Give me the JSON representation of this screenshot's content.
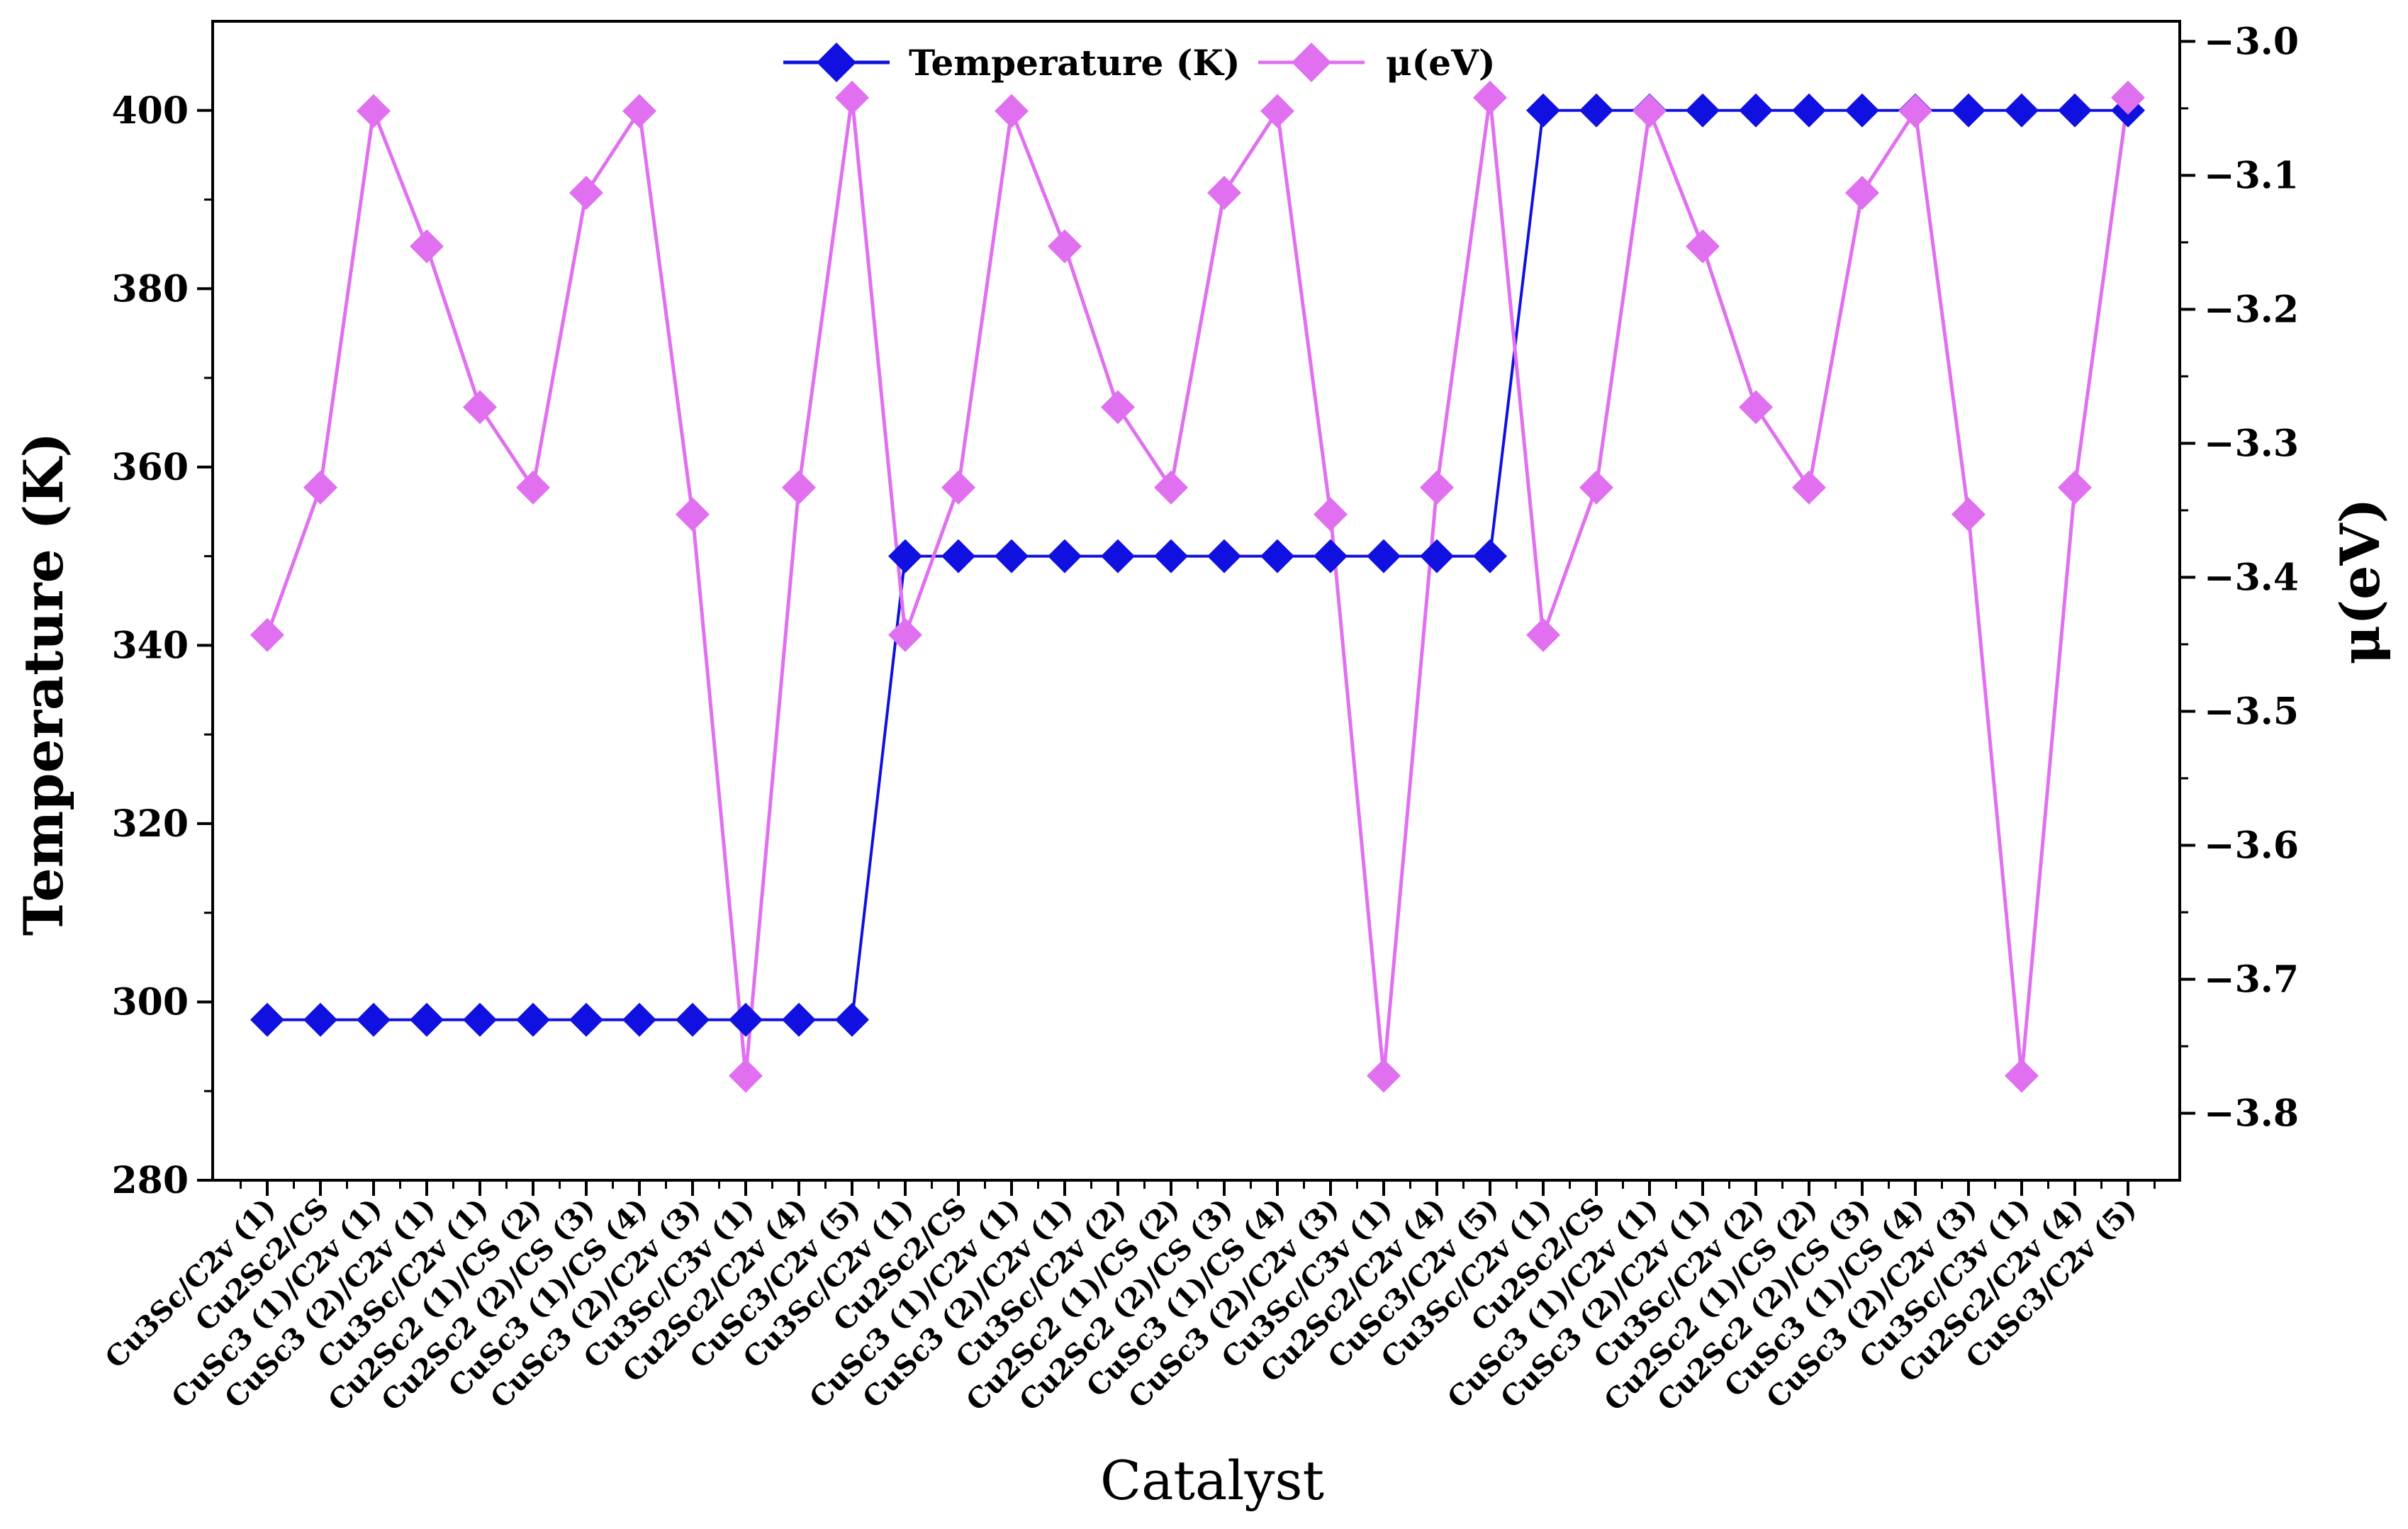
{
  "chart_data": {
    "type": "line",
    "title": "",
    "xlabel": "Catalyst",
    "ylabel": "Temperature (K)",
    "y2label": "μ(eV)",
    "ylim": [
      280,
      410
    ],
    "y2lim": [
      -3.85,
      -2.985
    ],
    "yticks": [
      280,
      300,
      320,
      340,
      360,
      380,
      400
    ],
    "y2ticks": [
      -3.8,
      -3.7,
      -3.6,
      -3.5,
      -3.4,
      -3.3,
      -3.2,
      -3.1,
      -3.0
    ],
    "y2tick_labels": [
      "−3.8",
      "−3.7",
      "−3.6",
      "−3.5",
      "−3.4",
      "−3.3",
      "−3.2",
      "−3.1",
      "−3.0"
    ],
    "legend_position": "top-center",
    "categories": [
      "Cu3Sc/C2v (1)",
      "Cu2Sc2/CS",
      "CuSc3 (1)/C2v (1)",
      "CuSc3 (2)/C2v (1)",
      "Cu3Sc/C2v (1)",
      "Cu2Sc2 (1)/CS (2)",
      "Cu2Sc2 (2)/CS (3)",
      "CuSc3 (1)/CS (4)",
      "CuSc3 (2)/C2v (3)",
      "Cu3Sc/C3v (1)",
      "Cu2Sc2/C2v (4)",
      "CuSc3/C2v (5)",
      "Cu3Sc/C2v (1)",
      "Cu2Sc2/CS",
      "CuSc3 (1)/C2v (1)",
      "CuSc3 (2)/C2v (1)",
      "Cu3Sc/C2v (2)",
      "Cu2Sc2 (1)/CS (2)",
      "Cu2Sc2 (2)/CS (3)",
      "CuSc3 (1)/CS (4)",
      "CuSc3 (2)/C2v (3)",
      "Cu3Sc/C3v (1)",
      "Cu2Sc2/C2v (4)",
      "CuSc3/C2v (5)",
      "Cu3Sc/C2v (1)",
      "Cu2Sc2/CS",
      "CuSc3 (1)/C2v (1)",
      "CuSc3 (2)/C2v (1)",
      "Cu3Sc/C2v (2)",
      "Cu2Sc2 (1)/CS (2)",
      "Cu2Sc2 (2)/CS (3)",
      "CuSc3 (1)/CS (4)",
      "CuSc3 (2)/C2v (3)",
      "Cu3Sc/C3v (1)",
      "Cu2Sc2/C2v (4)",
      "CuSc3/C2v (5)"
    ],
    "series": [
      {
        "name": "Temperature (K)",
        "axis": "left",
        "color": "#1010e0",
        "values": [
          298,
          298,
          298,
          298,
          298,
          298,
          298,
          298,
          298,
          298,
          298,
          298,
          350,
          350,
          350,
          350,
          350,
          350,
          350,
          350,
          350,
          350,
          350,
          350,
          400,
          400,
          400,
          400,
          400,
          400,
          400,
          400,
          400,
          400,
          400,
          400
        ]
      },
      {
        "name": "μ(eV)",
        "axis": "right",
        "color": "#e070f0",
        "values": [
          -3.443,
          -3.333,
          -3.052,
          -3.153,
          -3.273,
          -3.333,
          -3.113,
          -3.052,
          -3.353,
          -3.772,
          -3.333,
          -3.042,
          -3.443,
          -3.333,
          -3.052,
          -3.153,
          -3.273,
          -3.333,
          -3.113,
          -3.052,
          -3.353,
          -3.772,
          -3.333,
          -3.042,
          -3.443,
          -3.333,
          -3.052,
          -3.153,
          -3.273,
          -3.333,
          -3.113,
          -3.052,
          -3.353,
          -3.772,
          -3.333,
          -3.042
        ]
      }
    ]
  }
}
